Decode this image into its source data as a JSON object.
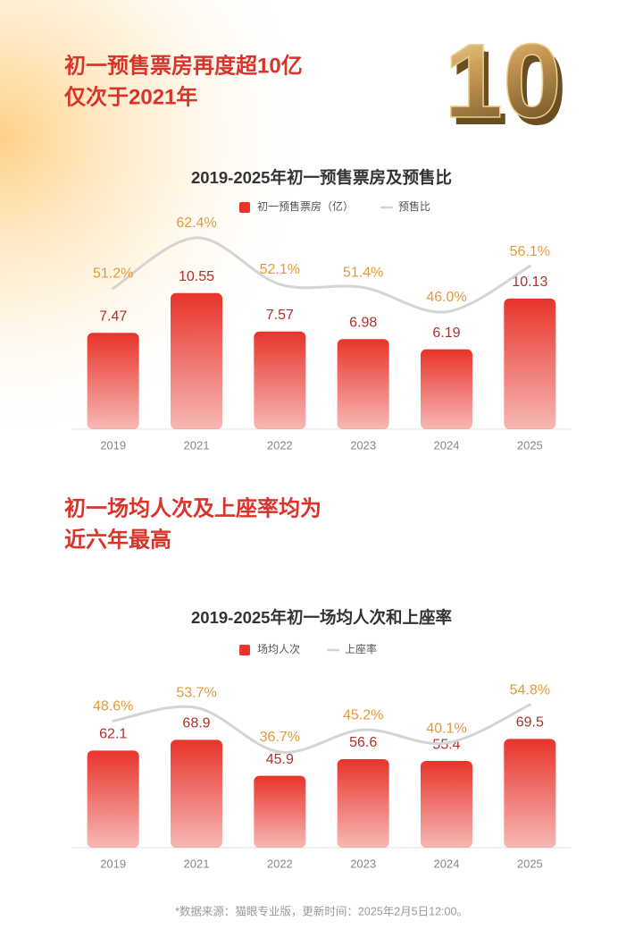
{
  "badge": "10",
  "chart_data": [
    {
      "type": "bar",
      "annotations": [
        "初一预售票房再度超10亿",
        "仅次于2021年"
      ],
      "title": "2019-2025年初一预售票房及预售比",
      "categories": [
        "2019",
        "2021",
        "2022",
        "2023",
        "2024",
        "2025"
      ],
      "series": [
        {
          "name": "初一预售票房（亿）",
          "type": "bar",
          "color": "#e8342b",
          "values": [
            7.47,
            10.55,
            7.57,
            6.98,
            6.19,
            10.13
          ]
        },
        {
          "name": "预售比",
          "type": "line",
          "axis": "y2",
          "color": "#d4d4d4",
          "values": [
            51.2,
            62.4,
            52.1,
            51.4,
            46.0,
            56.1
          ],
          "value_labels": [
            "51.2%",
            "62.4%",
            "52.1%",
            "51.4%",
            "46.0%",
            "56.1%"
          ]
        }
      ],
      "ylim": [
        0,
        14
      ],
      "y2lim": [
        20,
        60
      ]
    },
    {
      "type": "bar",
      "annotations": [
        "初一场均人次及上座率均为",
        "近六年最高"
      ],
      "title": "2019-2025年初一场均人次和上座率",
      "categories": [
        "2019",
        "2021",
        "2022",
        "2023",
        "2024",
        "2025"
      ],
      "series": [
        {
          "name": "场均人次",
          "type": "bar",
          "color": "#e8342b",
          "values": [
            62.1,
            68.9,
            45.9,
            56.6,
            55.4,
            69.5
          ]
        },
        {
          "name": "上座率",
          "type": "line",
          "axis": "y2",
          "color": "#d4d4d4",
          "values": [
            48.6,
            53.7,
            36.7,
            45.2,
            40.1,
            54.8
          ],
          "value_labels": [
            "48.6%",
            "53.7%",
            "36.7%",
            "45.2%",
            "40.1%",
            "54.8%"
          ]
        }
      ],
      "ylim": [
        0,
        100
      ],
      "y2lim": [
        0,
        60
      ]
    }
  ],
  "footer": "*数据来源：猫眼专业版，更新时间：2025年2月5日12:00。"
}
